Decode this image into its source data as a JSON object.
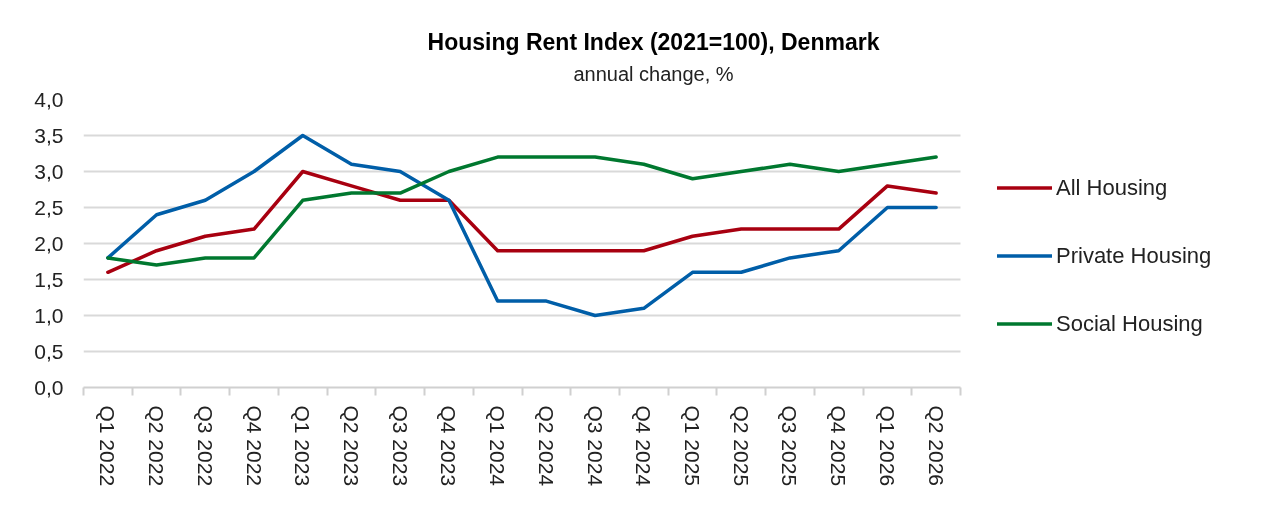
{
  "chart_data": {
    "type": "line",
    "title": "Housing Rent Index (2021=100), Denmark",
    "subtitle": "annual change, %",
    "categories": [
      "Q1 2022",
      "Q2 2022",
      "Q3 2022",
      "Q4 2022",
      "Q1 2023",
      "Q2 2023",
      "Q3 2023",
      "Q4 2023",
      "Q1 2024",
      "Q2 2024",
      "Q3 2024",
      "Q4 2024",
      "Q1 2025",
      "Q2 2025",
      "Q3 2025",
      "Q4 2025",
      "Q1 2026",
      "Q2 2026"
    ],
    "series": [
      {
        "name": "All Housing",
        "color": "#a80010",
        "values": [
          1.6,
          1.9,
          2.1,
          2.2,
          3.0,
          2.8,
          2.6,
          2.6,
          1.9,
          1.9,
          1.9,
          1.9,
          2.1,
          2.2,
          2.2,
          2.2,
          2.8,
          2.7
        ]
      },
      {
        "name": "Private Housing",
        "color": "#005ea8",
        "values": [
          1.8,
          2.4,
          2.6,
          3.0,
          3.5,
          3.1,
          3.0,
          2.6,
          1.2,
          1.2,
          1.0,
          1.1,
          1.6,
          1.6,
          1.8,
          1.9,
          2.5,
          2.5
        ]
      },
      {
        "name": "Social Housing",
        "color": "#00782f",
        "values": [
          1.8,
          1.7,
          1.8,
          1.8,
          2.6,
          2.7,
          2.7,
          3.0,
          3.2,
          3.2,
          3.2,
          3.1,
          2.9,
          3.0,
          3.1,
          3.0,
          3.1,
          3.2
        ]
      }
    ],
    "ylim": [
      0,
      4
    ],
    "yticks": [
      {
        "value": 0,
        "label": "0,0"
      },
      {
        "value": 0.5,
        "label": "0,5"
      },
      {
        "value": 1,
        "label": "1,0"
      },
      {
        "value": 1.5,
        "label": "1,5"
      },
      {
        "value": 2,
        "label": "2,0"
      },
      {
        "value": 2.5,
        "label": "2,5"
      },
      {
        "value": 3,
        "label": "3,0"
      },
      {
        "value": 3.5,
        "label": "3,5"
      },
      {
        "value": 4,
        "label": "4,0"
      }
    ],
    "grid": "y",
    "legend": "right"
  }
}
